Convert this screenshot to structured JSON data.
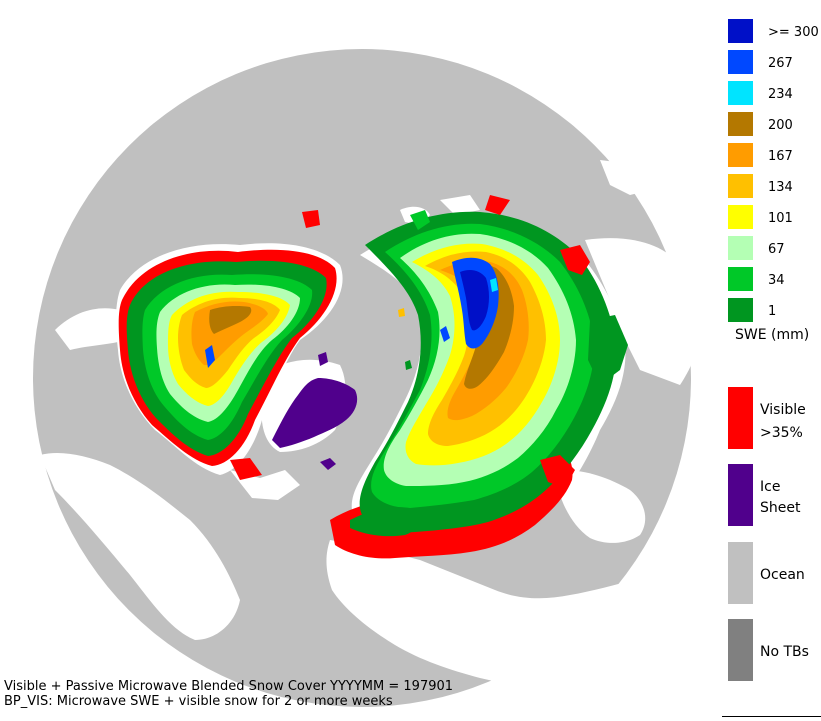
{
  "map": {
    "projection": "north-polar",
    "ocean_color": "#c0c0c0",
    "land_color": "#ffffff"
  },
  "legend": {
    "swe_items": [
      {
        "label": ">= 300",
        "color": "#0010c8"
      },
      {
        "label": "267",
        "color": "#0048ff"
      },
      {
        "label": "234",
        "color": "#00e4ff"
      },
      {
        "label": "200",
        "color": "#b47800"
      },
      {
        "label": "167",
        "color": "#ff9c00"
      },
      {
        "label": "134",
        "color": "#ffc000"
      },
      {
        "label": "101",
        "color": "#ffff00"
      },
      {
        "label": "67",
        "color": "#b4ffb4"
      },
      {
        "label": "34",
        "color": "#00c828"
      },
      {
        "label": "1",
        "color": "#009620"
      }
    ],
    "swe_unit_label": "SWE (mm)",
    "category_items": [
      {
        "label_line1": "Visible",
        "label_line2": ">35%",
        "color": "#ff0000"
      },
      {
        "label_line1": "Ice",
        "label_line2": "Sheet",
        "color": "#50008c"
      },
      {
        "label_line1": "Ocean",
        "label_line2": "",
        "color": "#c0c0c0"
      },
      {
        "label_line1": "No TBs",
        "label_line2": "",
        "color": "#808080"
      }
    ]
  },
  "caption": {
    "line1": "Visible + Passive Microwave Blended Snow Cover YYYYMM = 197901",
    "line2": "BP_VIS: Microwave SWE + visible snow for 2 or more weeks"
  }
}
